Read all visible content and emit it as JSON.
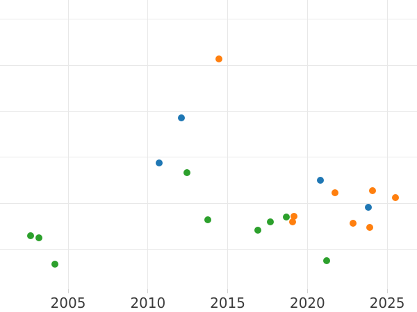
{
  "figure": {
    "background_color": "#ffffff",
    "grid_color": "#e8e8e8",
    "tick_mark_color": "#d4d4d4",
    "tick_label_color": "#3b3b3b"
  },
  "chart_data": {
    "type": "scatter",
    "title": "",
    "xlabel": "",
    "ylabel": "",
    "grid": true,
    "legend_position": "none",
    "marker_diameter_px": 10,
    "xlim": [
      2000.73,
      2026.87
    ],
    "ylim": [
      -0.87,
      5.42
    ],
    "x_ticks": [
      2005,
      2010,
      2015,
      2020,
      2025
    ],
    "x_tick_labels": [
      "2005",
      "2010",
      "2015",
      "2020",
      "2025"
    ],
    "y_gridlines": [
      0,
      1,
      2,
      3,
      4,
      5
    ],
    "y_tick_labels": [],
    "y_axis_note": "y-axis labels not visible in image; values in gridline units (bottom visible gridline = 0, one unit per gridline)",
    "series": [
      {
        "name": "blue",
        "color": "#1f77b4",
        "points": [
          [
            2010.71,
            1.87
          ],
          [
            2012.1,
            2.85
          ],
          [
            2020.82,
            1.5
          ],
          [
            2023.82,
            0.91
          ]
        ]
      },
      {
        "name": "orange",
        "color": "#ff7f0e",
        "points": [
          [
            2014.46,
            4.14
          ],
          [
            2019.07,
            0.59
          ],
          [
            2019.16,
            0.71
          ],
          [
            2021.73,
            1.23
          ],
          [
            2022.86,
            0.56
          ],
          [
            2023.91,
            0.47
          ],
          [
            2024.09,
            1.27
          ],
          [
            2025.52,
            1.12
          ]
        ]
      },
      {
        "name": "green",
        "color": "#2ca02c",
        "points": [
          [
            2002.65,
            0.29
          ],
          [
            2003.17,
            0.25
          ],
          [
            2004.17,
            -0.32
          ],
          [
            2012.45,
            1.66
          ],
          [
            2013.76,
            0.64
          ],
          [
            2016.9,
            0.41
          ],
          [
            2017.68,
            0.59
          ],
          [
            2018.68,
            0.7
          ],
          [
            2021.21,
            -0.25
          ]
        ]
      }
    ]
  }
}
